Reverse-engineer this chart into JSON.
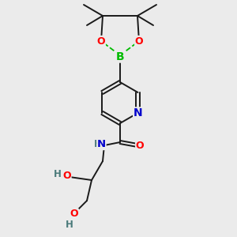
{
  "bg_color": "#ebebeb",
  "bond_color": "#1a1a1a",
  "atom_colors": {
    "O": "#ff0000",
    "N": "#0000cc",
    "B": "#00bb00",
    "C": "#1a1a1a",
    "H": "#4a7a7a"
  },
  "figsize": [
    3.0,
    3.0
  ],
  "dpi": 100
}
